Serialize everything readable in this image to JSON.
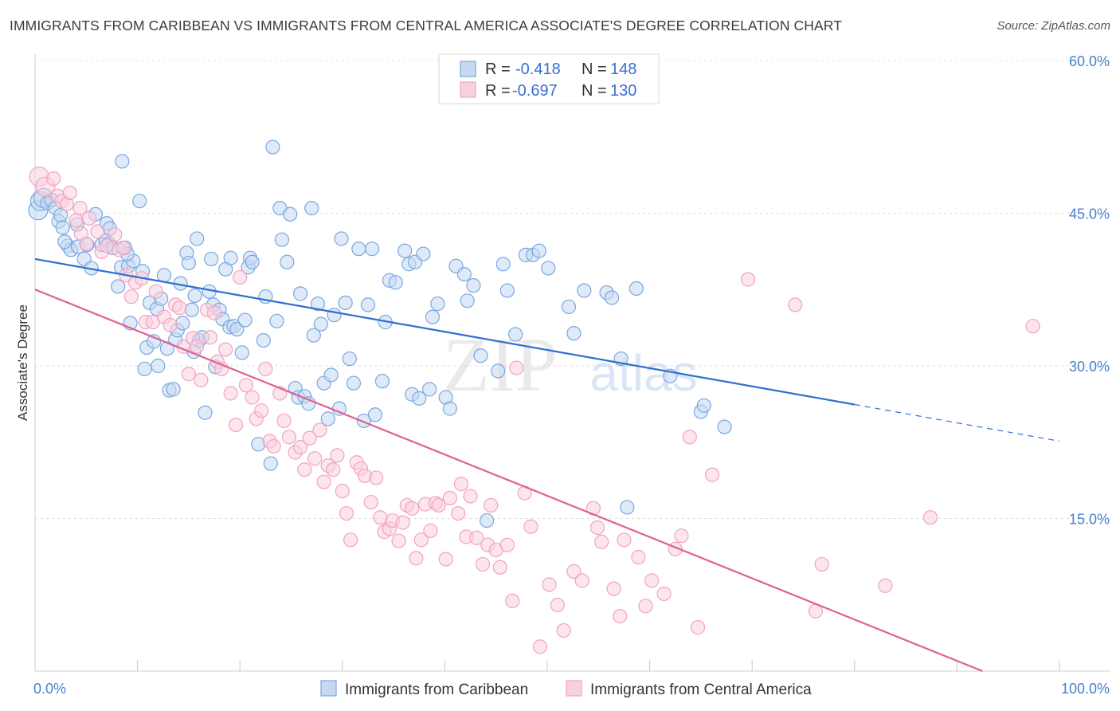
{
  "title": "IMMIGRANTS FROM CARIBBEAN VS IMMIGRANTS FROM CENTRAL AMERICA ASSOCIATE'S DEGREE CORRELATION CHART",
  "source": "Source: ZipAtlas.com",
  "watermark": {
    "zip": "ZIP",
    "atlas": "atlas"
  },
  "chart_data": {
    "type": "scatter",
    "title": "IMMIGRANTS FROM CARIBBEAN VS IMMIGRANTS FROM CENTRAL AMERICA ASSOCIATE'S DEGREE CORRELATION CHART",
    "xlabel": "",
    "ylabel": "Associate's Degree",
    "xlim": [
      0,
      100
    ],
    "ylim": [
      0,
      60
    ],
    "x_tick_labels": [
      "0.0%",
      "100.0%"
    ],
    "y_ticks": [
      15,
      30,
      45,
      60
    ],
    "y_tick_labels": [
      "15.0%",
      "30.0%",
      "45.0%",
      "60.0%"
    ],
    "grid": true,
    "legend_placement": "top-center",
    "stats": [
      {
        "r_label": "R =",
        "r_value": "-0.418",
        "n_label": "N =",
        "n_value": "148"
      },
      {
        "r_label": "R =",
        "r_value": "-0.697",
        "n_label": "N =",
        "n_value": "130"
      }
    ],
    "series": [
      {
        "name": "Immigrants from Caribbean",
        "color": "#7aa7e0",
        "line_color": "#2e6fd0",
        "trend": {
          "x0": 0,
          "y0": 40.5,
          "x1": 80,
          "y1": 26.2,
          "dash_to_x": 100,
          "dash_to_y": 22.6
        },
        "points": [
          [
            0.3,
            45.3
          ],
          [
            0.5,
            46.2
          ],
          [
            0.8,
            46.5
          ],
          [
            1.2,
            46.0
          ],
          [
            1.6,
            46.3
          ],
          [
            2.0,
            45.5
          ],
          [
            2.3,
            44.2
          ],
          [
            2.5,
            44.8
          ],
          [
            2.7,
            43.6
          ],
          [
            3.2,
            41.8
          ],
          [
            3.5,
            41.4
          ],
          [
            4.1,
            43.9
          ],
          [
            4.2,
            41.7
          ],
          [
            4.8,
            40.5
          ],
          [
            5.5,
            39.6
          ],
          [
            5.9,
            44.9
          ],
          [
            6.5,
            41.9
          ],
          [
            6.9,
            42.3
          ],
          [
            7.2,
            42.0
          ],
          [
            7.0,
            44.0
          ],
          [
            7.3,
            43.5
          ],
          [
            7.6,
            41.6
          ],
          [
            8.1,
            37.8
          ],
          [
            8.4,
            39.7
          ],
          [
            8.8,
            41.6
          ],
          [
            8.5,
            50.1
          ],
          [
            9.1,
            39.8
          ],
          [
            9.3,
            34.2
          ],
          [
            9.6,
            40.3
          ],
          [
            10.2,
            46.2
          ],
          [
            10.5,
            39.3
          ],
          [
            10.7,
            29.7
          ],
          [
            10.9,
            31.8
          ],
          [
            11.2,
            36.2
          ],
          [
            11.6,
            32.4
          ],
          [
            11.9,
            35.6
          ],
          [
            12.3,
            36.6
          ],
          [
            12.6,
            38.9
          ],
          [
            12.9,
            31.7
          ],
          [
            13.1,
            27.6
          ],
          [
            13.5,
            27.7
          ],
          [
            13.7,
            32.6
          ],
          [
            13.9,
            33.5
          ],
          [
            14.2,
            38.1
          ],
          [
            14.4,
            34.2
          ],
          [
            14.8,
            41.1
          ],
          [
            15.0,
            40.1
          ],
          [
            15.3,
            35.5
          ],
          [
            15.5,
            31.4
          ],
          [
            15.8,
            42.5
          ],
          [
            16.0,
            32.5
          ],
          [
            16.3,
            32.8
          ],
          [
            16.6,
            25.4
          ],
          [
            17.0,
            37.3
          ],
          [
            17.2,
            40.5
          ],
          [
            17.4,
            36.0
          ],
          [
            17.6,
            29.9
          ],
          [
            18.0,
            35.5
          ],
          [
            18.3,
            34.6
          ],
          [
            18.6,
            39.5
          ],
          [
            19.0,
            33.8
          ],
          [
            19.1,
            40.6
          ],
          [
            19.4,
            33.9
          ],
          [
            19.7,
            33.6
          ],
          [
            20.2,
            31.3
          ],
          [
            20.5,
            34.5
          ],
          [
            20.8,
            39.7
          ],
          [
            21.0,
            40.6
          ],
          [
            21.2,
            40.2
          ],
          [
            21.8,
            22.3
          ],
          [
            22.3,
            32.5
          ],
          [
            22.5,
            36.8
          ],
          [
            23.0,
            20.4
          ],
          [
            23.2,
            51.5
          ],
          [
            23.6,
            34.4
          ],
          [
            23.9,
            45.5
          ],
          [
            24.1,
            42.4
          ],
          [
            24.6,
            40.2
          ],
          [
            24.9,
            44.9
          ],
          [
            25.4,
            27.8
          ],
          [
            25.7,
            26.9
          ],
          [
            25.9,
            37.1
          ],
          [
            26.3,
            27.0
          ],
          [
            26.7,
            26.3
          ],
          [
            27.0,
            45.5
          ],
          [
            27.2,
            33.0
          ],
          [
            27.6,
            36.1
          ],
          [
            27.9,
            34.1
          ],
          [
            28.2,
            28.3
          ],
          [
            28.6,
            24.8
          ],
          [
            28.9,
            29.1
          ],
          [
            29.2,
            35.0
          ],
          [
            29.7,
            25.8
          ],
          [
            29.9,
            42.5
          ],
          [
            30.3,
            36.2
          ],
          [
            30.7,
            30.7
          ],
          [
            31.1,
            28.3
          ],
          [
            31.6,
            41.5
          ],
          [
            32.1,
            24.6
          ],
          [
            32.5,
            36.0
          ],
          [
            32.9,
            41.5
          ],
          [
            33.2,
            25.2
          ],
          [
            33.9,
            28.5
          ],
          [
            34.2,
            34.3
          ],
          [
            34.6,
            38.4
          ],
          [
            35.2,
            38.2
          ],
          [
            36.1,
            41.3
          ],
          [
            36.5,
            40.0
          ],
          [
            36.8,
            27.2
          ],
          [
            37.1,
            40.2
          ],
          [
            37.5,
            26.8
          ],
          [
            37.9,
            41.0
          ],
          [
            38.5,
            27.7
          ],
          [
            38.8,
            34.8
          ],
          [
            39.3,
            36.1
          ],
          [
            40.1,
            26.9
          ],
          [
            40.5,
            25.8
          ],
          [
            41.1,
            39.8
          ],
          [
            41.9,
            39.0
          ],
          [
            42.2,
            36.4
          ],
          [
            42.8,
            37.9
          ],
          [
            43.5,
            31.0
          ],
          [
            44.1,
            14.8
          ],
          [
            45.2,
            29.5
          ],
          [
            45.7,
            40.0
          ],
          [
            46.1,
            37.4
          ],
          [
            46.9,
            33.1
          ],
          [
            47.9,
            40.9
          ],
          [
            48.6,
            40.9
          ],
          [
            49.2,
            41.3
          ],
          [
            50.1,
            39.6
          ],
          [
            52.1,
            35.8
          ],
          [
            52.6,
            33.2
          ],
          [
            53.6,
            37.4
          ],
          [
            55.8,
            37.2
          ],
          [
            56.3,
            36.7
          ],
          [
            57.2,
            30.7
          ],
          [
            57.8,
            16.1
          ],
          [
            58.7,
            37.6
          ],
          [
            62.0,
            29.0
          ],
          [
            65.0,
            25.5
          ],
          [
            65.3,
            26.1
          ],
          [
            67.3,
            24.0
          ],
          [
            2.9,
            42.2
          ],
          [
            5.1,
            41.9
          ],
          [
            9.0,
            41.0
          ],
          [
            12.0,
            30.0
          ],
          [
            15.6,
            36.9
          ]
        ]
      },
      {
        "name": "Immigrants from Central America",
        "color": "#f2a3bf",
        "line_color": "#e0608f",
        "trend": {
          "x0": 0,
          "y0": 37.5,
          "x1": 92.5,
          "y1": 0
        },
        "points": [
          [
            0.4,
            48.6
          ],
          [
            1.0,
            47.6
          ],
          [
            1.8,
            48.4
          ],
          [
            2.2,
            46.7
          ],
          [
            2.6,
            46.2
          ],
          [
            3.1,
            45.9
          ],
          [
            3.4,
            47.0
          ],
          [
            4.0,
            44.3
          ],
          [
            4.4,
            45.5
          ],
          [
            4.5,
            43.0
          ],
          [
            5.0,
            42.0
          ],
          [
            5.3,
            44.5
          ],
          [
            6.1,
            43.2
          ],
          [
            6.5,
            41.2
          ],
          [
            7.0,
            41.8
          ],
          [
            7.8,
            42.9
          ],
          [
            8.2,
            41.4
          ],
          [
            8.6,
            41.6
          ],
          [
            8.9,
            38.9
          ],
          [
            9.4,
            36.8
          ],
          [
            9.8,
            38.2
          ],
          [
            10.4,
            38.6
          ],
          [
            10.8,
            34.3
          ],
          [
            11.5,
            34.3
          ],
          [
            11.8,
            37.3
          ],
          [
            12.6,
            34.8
          ],
          [
            13.2,
            34.0
          ],
          [
            13.7,
            36.0
          ],
          [
            14.1,
            35.7
          ],
          [
            14.5,
            31.9
          ],
          [
            15.0,
            29.2
          ],
          [
            15.4,
            32.7
          ],
          [
            15.8,
            31.9
          ],
          [
            16.2,
            28.6
          ],
          [
            16.8,
            35.5
          ],
          [
            17.1,
            32.8
          ],
          [
            17.5,
            35.2
          ],
          [
            17.8,
            30.4
          ],
          [
            18.2,
            29.7
          ],
          [
            18.6,
            31.6
          ],
          [
            19.1,
            27.3
          ],
          [
            19.6,
            24.2
          ],
          [
            20.0,
            38.7
          ],
          [
            20.6,
            28.1
          ],
          [
            21.2,
            26.9
          ],
          [
            21.6,
            24.8
          ],
          [
            22.1,
            25.6
          ],
          [
            22.5,
            29.7
          ],
          [
            22.9,
            22.6
          ],
          [
            23.3,
            22.1
          ],
          [
            23.9,
            27.3
          ],
          [
            24.3,
            24.6
          ],
          [
            24.8,
            23.0
          ],
          [
            25.4,
            21.5
          ],
          [
            25.9,
            22.0
          ],
          [
            26.3,
            19.8
          ],
          [
            26.8,
            22.9
          ],
          [
            27.3,
            20.9
          ],
          [
            27.8,
            23.7
          ],
          [
            28.2,
            18.6
          ],
          [
            28.6,
            20.2
          ],
          [
            29.1,
            19.8
          ],
          [
            29.5,
            21.2
          ],
          [
            30.0,
            17.7
          ],
          [
            30.4,
            15.5
          ],
          [
            30.8,
            12.9
          ],
          [
            31.4,
            20.5
          ],
          [
            31.8,
            19.9
          ],
          [
            32.2,
            19.2
          ],
          [
            32.8,
            16.6
          ],
          [
            33.3,
            19.0
          ],
          [
            33.7,
            15.1
          ],
          [
            34.1,
            13.7
          ],
          [
            34.6,
            14.0
          ],
          [
            34.9,
            14.8
          ],
          [
            35.5,
            12.8
          ],
          [
            35.9,
            14.6
          ],
          [
            36.3,
            16.3
          ],
          [
            36.8,
            16.0
          ],
          [
            37.2,
            11.1
          ],
          [
            37.7,
            12.9
          ],
          [
            38.1,
            16.4
          ],
          [
            38.6,
            13.8
          ],
          [
            39.1,
            16.5
          ],
          [
            39.4,
            16.3
          ],
          [
            40.1,
            11.0
          ],
          [
            40.5,
            17.0
          ],
          [
            41.3,
            15.5
          ],
          [
            41.6,
            18.4
          ],
          [
            42.1,
            13.2
          ],
          [
            42.5,
            17.2
          ],
          [
            43.1,
            13.1
          ],
          [
            43.7,
            10.5
          ],
          [
            44.2,
            12.4
          ],
          [
            44.5,
            16.3
          ],
          [
            45.0,
            11.9
          ],
          [
            45.4,
            10.2
          ],
          [
            46.1,
            12.4
          ],
          [
            46.6,
            6.9
          ],
          [
            47.0,
            29.8
          ],
          [
            47.8,
            17.5
          ],
          [
            48.4,
            14.2
          ],
          [
            49.3,
            2.4
          ],
          [
            50.2,
            8.5
          ],
          [
            51.0,
            6.5
          ],
          [
            51.6,
            4.0
          ],
          [
            52.6,
            9.8
          ],
          [
            53.4,
            8.9
          ],
          [
            54.5,
            16.0
          ],
          [
            54.9,
            14.1
          ],
          [
            55.3,
            12.7
          ],
          [
            56.5,
            8.1
          ],
          [
            57.1,
            5.4
          ],
          [
            57.5,
            12.9
          ],
          [
            58.9,
            11.2
          ],
          [
            59.6,
            6.4
          ],
          [
            60.2,
            8.9
          ],
          [
            61.4,
            7.6
          ],
          [
            62.5,
            12.0
          ],
          [
            63.1,
            13.3
          ],
          [
            63.9,
            23.0
          ],
          [
            64.7,
            4.3
          ],
          [
            66.1,
            19.3
          ],
          [
            76.8,
            10.5
          ],
          [
            76.2,
            5.9
          ],
          [
            83.0,
            8.4
          ],
          [
            87.4,
            15.1
          ],
          [
            97.4,
            33.9
          ],
          [
            69.6,
            38.5
          ],
          [
            74.2,
            36.0
          ]
        ]
      }
    ]
  },
  "bottom_legend": [
    {
      "label": "Immigrants from Caribbean",
      "color": "#7aa7e0"
    },
    {
      "label": "Immigrants from Central America",
      "color": "#f2a3bf"
    }
  ]
}
